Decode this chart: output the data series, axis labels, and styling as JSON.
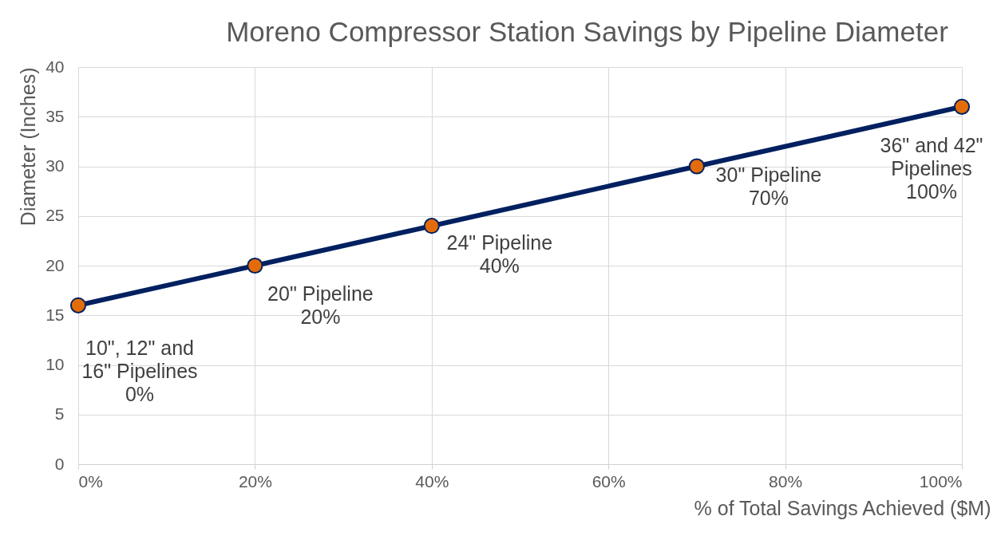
{
  "chart_data": {
    "type": "line",
    "title": "Moreno Compressor Station Savings by Pipeline Diameter",
    "xlabel": "% of Total Savings Achieved ($M)",
    "ylabel": "Diameter (Inches)",
    "x": [
      0,
      20,
      40,
      70,
      100
    ],
    "series": [
      {
        "color": "#002060",
        "values": [
          16,
          20,
          24,
          30,
          36
        ]
      }
    ],
    "colors": [
      "#e36c09",
      "#e36c09",
      "#e36c09",
      "#e36c09",
      "#e36c09"
    ],
    "marker": "circle",
    "line_style": "solid",
    "grid": true,
    "xlim": [
      0,
      100
    ],
    "xticks": [
      {
        "value": 0,
        "label": "0%"
      },
      {
        "value": 20,
        "label": "20%"
      },
      {
        "value": 40,
        "label": "40%"
      },
      {
        "value": 60,
        "label": "60%"
      },
      {
        "value": 80,
        "label": "80%"
      },
      {
        "value": 100,
        "label": "100%"
      }
    ],
    "ylim": [
      0,
      40
    ],
    "yticks": [
      0,
      5,
      10,
      15,
      20,
      25,
      30,
      35,
      40
    ],
    "annotations": [
      {
        "text": "10\", 12\" and\n16\" Pipelines\n0%",
        "x": 0,
        "y": 16
      },
      {
        "text": "20\" Pipeline\n20%",
        "x": 20,
        "y": 20
      },
      {
        "text": "24\" Pipeline\n40%",
        "x": 40,
        "y": 24
      },
      {
        "text": "30\" Pipeline\n70%",
        "x": 70,
        "y": 30
      },
      {
        "text": "36\" and 42\"\nPipelines\n100%",
        "x": 100,
        "y": 36
      }
    ]
  }
}
